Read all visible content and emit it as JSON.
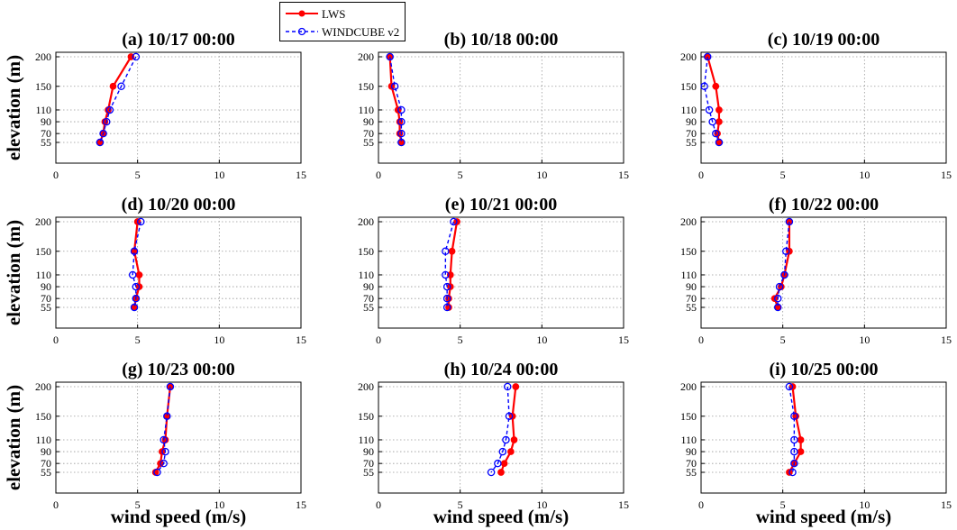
{
  "colors": {
    "lws": "#ff0000",
    "windcube": "#0000ff"
  },
  "legend": {
    "lws": "LWS",
    "windcube": "WINDCUBE v2"
  },
  "ylabel": "elevation (m)",
  "xlabel": "wind speed (m/s)",
  "chart_data": [
    {
      "type": "line",
      "title": "(a) 10/17 00:00",
      "elevations": [
        200,
        150,
        110,
        90,
        70,
        55
      ],
      "xlim": [
        0,
        15
      ],
      "xticks": [
        0,
        5,
        10,
        15
      ],
      "series": [
        {
          "name": "LWS",
          "values": [
            4.6,
            3.5,
            3.2,
            3.0,
            2.9,
            2.7
          ]
        },
        {
          "name": "WINDCUBE v2",
          "values": [
            4.9,
            4.0,
            3.3,
            3.1,
            2.9,
            2.7
          ]
        }
      ]
    },
    {
      "type": "line",
      "title": "(b) 10/18 00:00",
      "elevations": [
        200,
        150,
        110,
        90,
        70,
        55
      ],
      "xlim": [
        0,
        15
      ],
      "xticks": [
        0,
        5,
        10,
        15
      ],
      "series": [
        {
          "name": "LWS",
          "values": [
            0.7,
            0.8,
            1.2,
            1.3,
            1.3,
            1.4
          ]
        },
        {
          "name": "WINDCUBE v2",
          "values": [
            0.7,
            1.0,
            1.4,
            1.4,
            1.4,
            1.4
          ]
        }
      ]
    },
    {
      "type": "line",
      "title": "(c) 10/19 00:00",
      "elevations": [
        200,
        150,
        110,
        90,
        70,
        55
      ],
      "xlim": [
        0,
        15
      ],
      "xticks": [
        0,
        5,
        10,
        15
      ],
      "series": [
        {
          "name": "LWS",
          "values": [
            0.4,
            0.9,
            1.1,
            1.1,
            1.0,
            1.1
          ]
        },
        {
          "name": "WINDCUBE v2",
          "values": [
            0.4,
            0.2,
            0.5,
            0.7,
            0.9,
            1.1
          ]
        }
      ]
    },
    {
      "type": "line",
      "title": "(d) 10/20 00:00",
      "elevations": [
        200,
        150,
        110,
        90,
        70,
        55
      ],
      "xlim": [
        0,
        15
      ],
      "xticks": [
        0,
        5,
        10,
        15
      ],
      "series": [
        {
          "name": "LWS",
          "values": [
            5.0,
            4.8,
            5.1,
            5.1,
            4.9,
            4.8
          ]
        },
        {
          "name": "WINDCUBE v2",
          "values": [
            5.2,
            4.8,
            4.7,
            4.9,
            4.9,
            4.8
          ]
        }
      ]
    },
    {
      "type": "line",
      "title": "(e) 10/21 00:00",
      "elevations": [
        200,
        150,
        110,
        90,
        70,
        55
      ],
      "xlim": [
        0,
        15
      ],
      "xticks": [
        0,
        5,
        10,
        15
      ],
      "series": [
        {
          "name": "LWS",
          "values": [
            4.8,
            4.5,
            4.4,
            4.4,
            4.3,
            4.3
          ]
        },
        {
          "name": "WINDCUBE v2",
          "values": [
            4.6,
            4.1,
            4.1,
            4.2,
            4.2,
            4.2
          ]
        }
      ]
    },
    {
      "type": "line",
      "title": "(f) 10/22 00:00",
      "elevations": [
        200,
        150,
        110,
        90,
        70,
        55
      ],
      "xlim": [
        0,
        15
      ],
      "xticks": [
        0,
        5,
        10,
        15
      ],
      "series": [
        {
          "name": "LWS",
          "values": [
            5.4,
            5.4,
            5.1,
            4.9,
            4.5,
            4.7
          ]
        },
        {
          "name": "WINDCUBE v2",
          "values": [
            5.4,
            5.2,
            5.1,
            4.8,
            4.7,
            4.7
          ]
        }
      ]
    },
    {
      "type": "line",
      "title": "(g) 10/23 00:00",
      "elevations": [
        200,
        150,
        110,
        90,
        70,
        55
      ],
      "xlim": [
        0,
        15
      ],
      "xticks": [
        0,
        5,
        10,
        15
      ],
      "series": [
        {
          "name": "LWS",
          "values": [
            7.0,
            6.8,
            6.7,
            6.5,
            6.4,
            6.1
          ]
        },
        {
          "name": "WINDCUBE v2",
          "values": [
            7.0,
            6.8,
            6.6,
            6.7,
            6.6,
            6.2
          ]
        }
      ]
    },
    {
      "type": "line",
      "title": "(h) 10/24 00:00",
      "elevations": [
        200,
        150,
        110,
        90,
        70,
        55
      ],
      "xlim": [
        0,
        15
      ],
      "xticks": [
        0,
        5,
        10,
        15
      ],
      "series": [
        {
          "name": "LWS",
          "values": [
            8.4,
            8.2,
            8.3,
            8.1,
            7.7,
            7.5
          ]
        },
        {
          "name": "WINDCUBE v2",
          "values": [
            7.9,
            8.0,
            7.8,
            7.6,
            7.3,
            6.9
          ]
        }
      ]
    },
    {
      "type": "line",
      "title": "(i) 10/25 00:00",
      "elevations": [
        200,
        150,
        110,
        90,
        70,
        55
      ],
      "xlim": [
        0,
        15
      ],
      "xticks": [
        0,
        5,
        10,
        15
      ],
      "series": [
        {
          "name": "LWS",
          "values": [
            5.6,
            5.8,
            6.1,
            6.1,
            5.7,
            5.4
          ]
        },
        {
          "name": "WINDCUBE v2",
          "values": [
            5.4,
            5.7,
            5.7,
            5.7,
            5.7,
            5.6
          ]
        }
      ]
    }
  ]
}
